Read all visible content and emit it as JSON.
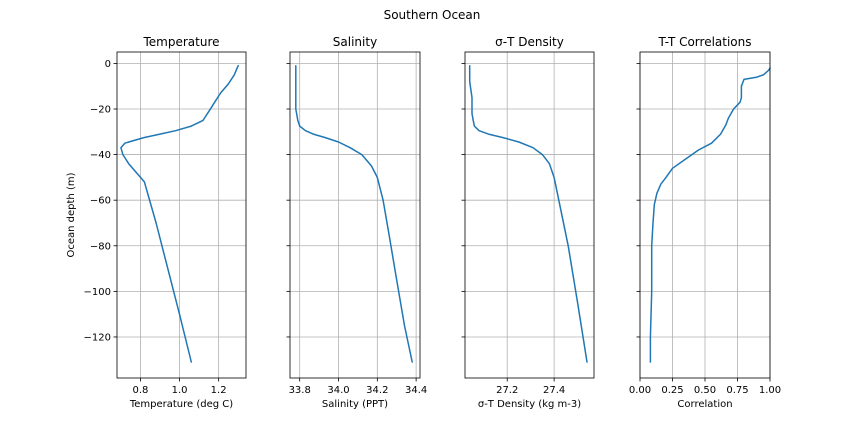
{
  "figure_title": "Southern Ocean",
  "colors": {
    "series": "#1f77b4",
    "grid": "#b0b0b0"
  },
  "chart_data": [
    {
      "type": "line",
      "title": "Temperature",
      "xlabel": "Temperature (deg C)",
      "ylabel": "Ocean depth (m)",
      "xlim": [
        0.68,
        1.34
      ],
      "ylim": [
        -138,
        5
      ],
      "xticks": [
        {
          "v": 0.8,
          "label": "0.8"
        },
        {
          "v": 1.0,
          "label": "1.0"
        },
        {
          "v": 1.2,
          "label": "1.2"
        }
      ],
      "yticks": [
        {
          "v": 0,
          "label": "0"
        },
        {
          "v": -20,
          "label": "−20"
        },
        {
          "v": -40,
          "label": "−40"
        },
        {
          "v": -60,
          "label": "−60"
        },
        {
          "v": -80,
          "label": "−80"
        },
        {
          "v": -100,
          "label": "−100"
        },
        {
          "v": -120,
          "label": "−120"
        }
      ],
      "grid": true,
      "x": [
        1.3,
        1.29,
        1.28,
        1.25,
        1.21,
        1.18,
        1.15,
        1.12,
        1.06,
        0.98,
        0.9,
        0.82,
        0.76,
        0.72,
        0.7,
        0.71,
        0.74,
        0.78,
        0.82,
        0.88,
        0.94,
        1.0,
        1.06
      ],
      "y": [
        -1,
        -3,
        -5,
        -9,
        -13,
        -17,
        -21,
        -25,
        -27.5,
        -29.5,
        -31,
        -32.5,
        -34,
        -35,
        -37,
        -40,
        -44,
        -48,
        -52,
        -70,
        -90,
        -110,
        -131
      ]
    },
    {
      "type": "line",
      "title": "Salinity",
      "xlabel": "Salinity (PPT)",
      "ylabel": "",
      "xlim": [
        33.75,
        34.42
      ],
      "ylim": [
        -138,
        5
      ],
      "xticks": [
        {
          "v": 33.8,
          "label": "33.8"
        },
        {
          "v": 34.0,
          "label": "34.0"
        },
        {
          "v": 34.2,
          "label": "34.2"
        },
        {
          "v": 34.4,
          "label": "34.4"
        }
      ],
      "yticks": [
        {
          "v": 0,
          "label": ""
        },
        {
          "v": -20,
          "label": ""
        },
        {
          "v": -40,
          "label": ""
        },
        {
          "v": -60,
          "label": ""
        },
        {
          "v": -80,
          "label": ""
        },
        {
          "v": -100,
          "label": ""
        },
        {
          "v": -120,
          "label": ""
        }
      ],
      "grid": true,
      "x": [
        33.78,
        33.78,
        33.78,
        33.79,
        33.8,
        33.83,
        33.87,
        33.93,
        34.0,
        34.06,
        34.12,
        34.17,
        34.2,
        34.23,
        34.26,
        34.3,
        34.34,
        34.38
      ],
      "y": [
        -1,
        -10,
        -20,
        -25,
        -27.5,
        -29.5,
        -31,
        -32.5,
        -34.5,
        -37,
        -40,
        -45,
        -50,
        -60,
        -75,
        -95,
        -115,
        -131
      ]
    },
    {
      "type": "line",
      "title": "σ-T Density",
      "xlabel": "σ-T Density (kg m-3)",
      "ylabel": "",
      "xlim": [
        27.02,
        27.57
      ],
      "ylim": [
        -138,
        5
      ],
      "xticks": [
        {
          "v": 27.2,
          "label": "27.2"
        },
        {
          "v": 27.4,
          "label": "27.4"
        }
      ],
      "yticks": [
        {
          "v": 0,
          "label": ""
        },
        {
          "v": -20,
          "label": ""
        },
        {
          "v": -40,
          "label": ""
        },
        {
          "v": -60,
          "label": ""
        },
        {
          "v": -80,
          "label": ""
        },
        {
          "v": -100,
          "label": ""
        },
        {
          "v": -120,
          "label": ""
        }
      ],
      "grid": true,
      "x": [
        27.04,
        27.04,
        27.05,
        27.05,
        27.055,
        27.06,
        27.08,
        27.12,
        27.18,
        27.25,
        27.31,
        27.35,
        27.38,
        27.4,
        27.42,
        27.46,
        27.5,
        27.54
      ],
      "y": [
        -1,
        -8,
        -15,
        -22,
        -25,
        -27.5,
        -29.5,
        -31,
        -32.5,
        -34.5,
        -37,
        -40,
        -44,
        -50,
        -60,
        -80,
        -105,
        -131
      ]
    },
    {
      "type": "line",
      "title": "T-T Correlations",
      "xlabel": "Correlation",
      "ylabel": "",
      "xlim": [
        0.0,
        1.0
      ],
      "ylim": [
        -138,
        5
      ],
      "xticks": [
        {
          "v": 0.0,
          "label": "0.00"
        },
        {
          "v": 0.25,
          "label": "0.25"
        },
        {
          "v": 0.5,
          "label": "0.50"
        },
        {
          "v": 0.75,
          "label": "0.75"
        },
        {
          "v": 1.0,
          "label": "1.00"
        }
      ],
      "yticks": [
        {
          "v": 0,
          "label": ""
        },
        {
          "v": -20,
          "label": ""
        },
        {
          "v": -40,
          "label": ""
        },
        {
          "v": -60,
          "label": ""
        },
        {
          "v": -80,
          "label": ""
        },
        {
          "v": -100,
          "label": ""
        },
        {
          "v": -120,
          "label": ""
        }
      ],
      "grid": true,
      "x": [
        1.0,
        0.99,
        0.95,
        0.9,
        0.8,
        0.78,
        0.78,
        0.77,
        0.72,
        0.68,
        0.66,
        0.62,
        0.55,
        0.45,
        0.35,
        0.25,
        0.2,
        0.16,
        0.13,
        0.11,
        0.1,
        0.09,
        0.09,
        0.08,
        0.08
      ],
      "y": [
        -2,
        -3,
        -5,
        -6,
        -7,
        -10,
        -15,
        -17,
        -20,
        -24,
        -27,
        -31,
        -35,
        -38,
        -42,
        -46,
        -50,
        -53,
        -57,
        -62,
        -70,
        -80,
        -100,
        -120,
        -131
      ]
    }
  ]
}
